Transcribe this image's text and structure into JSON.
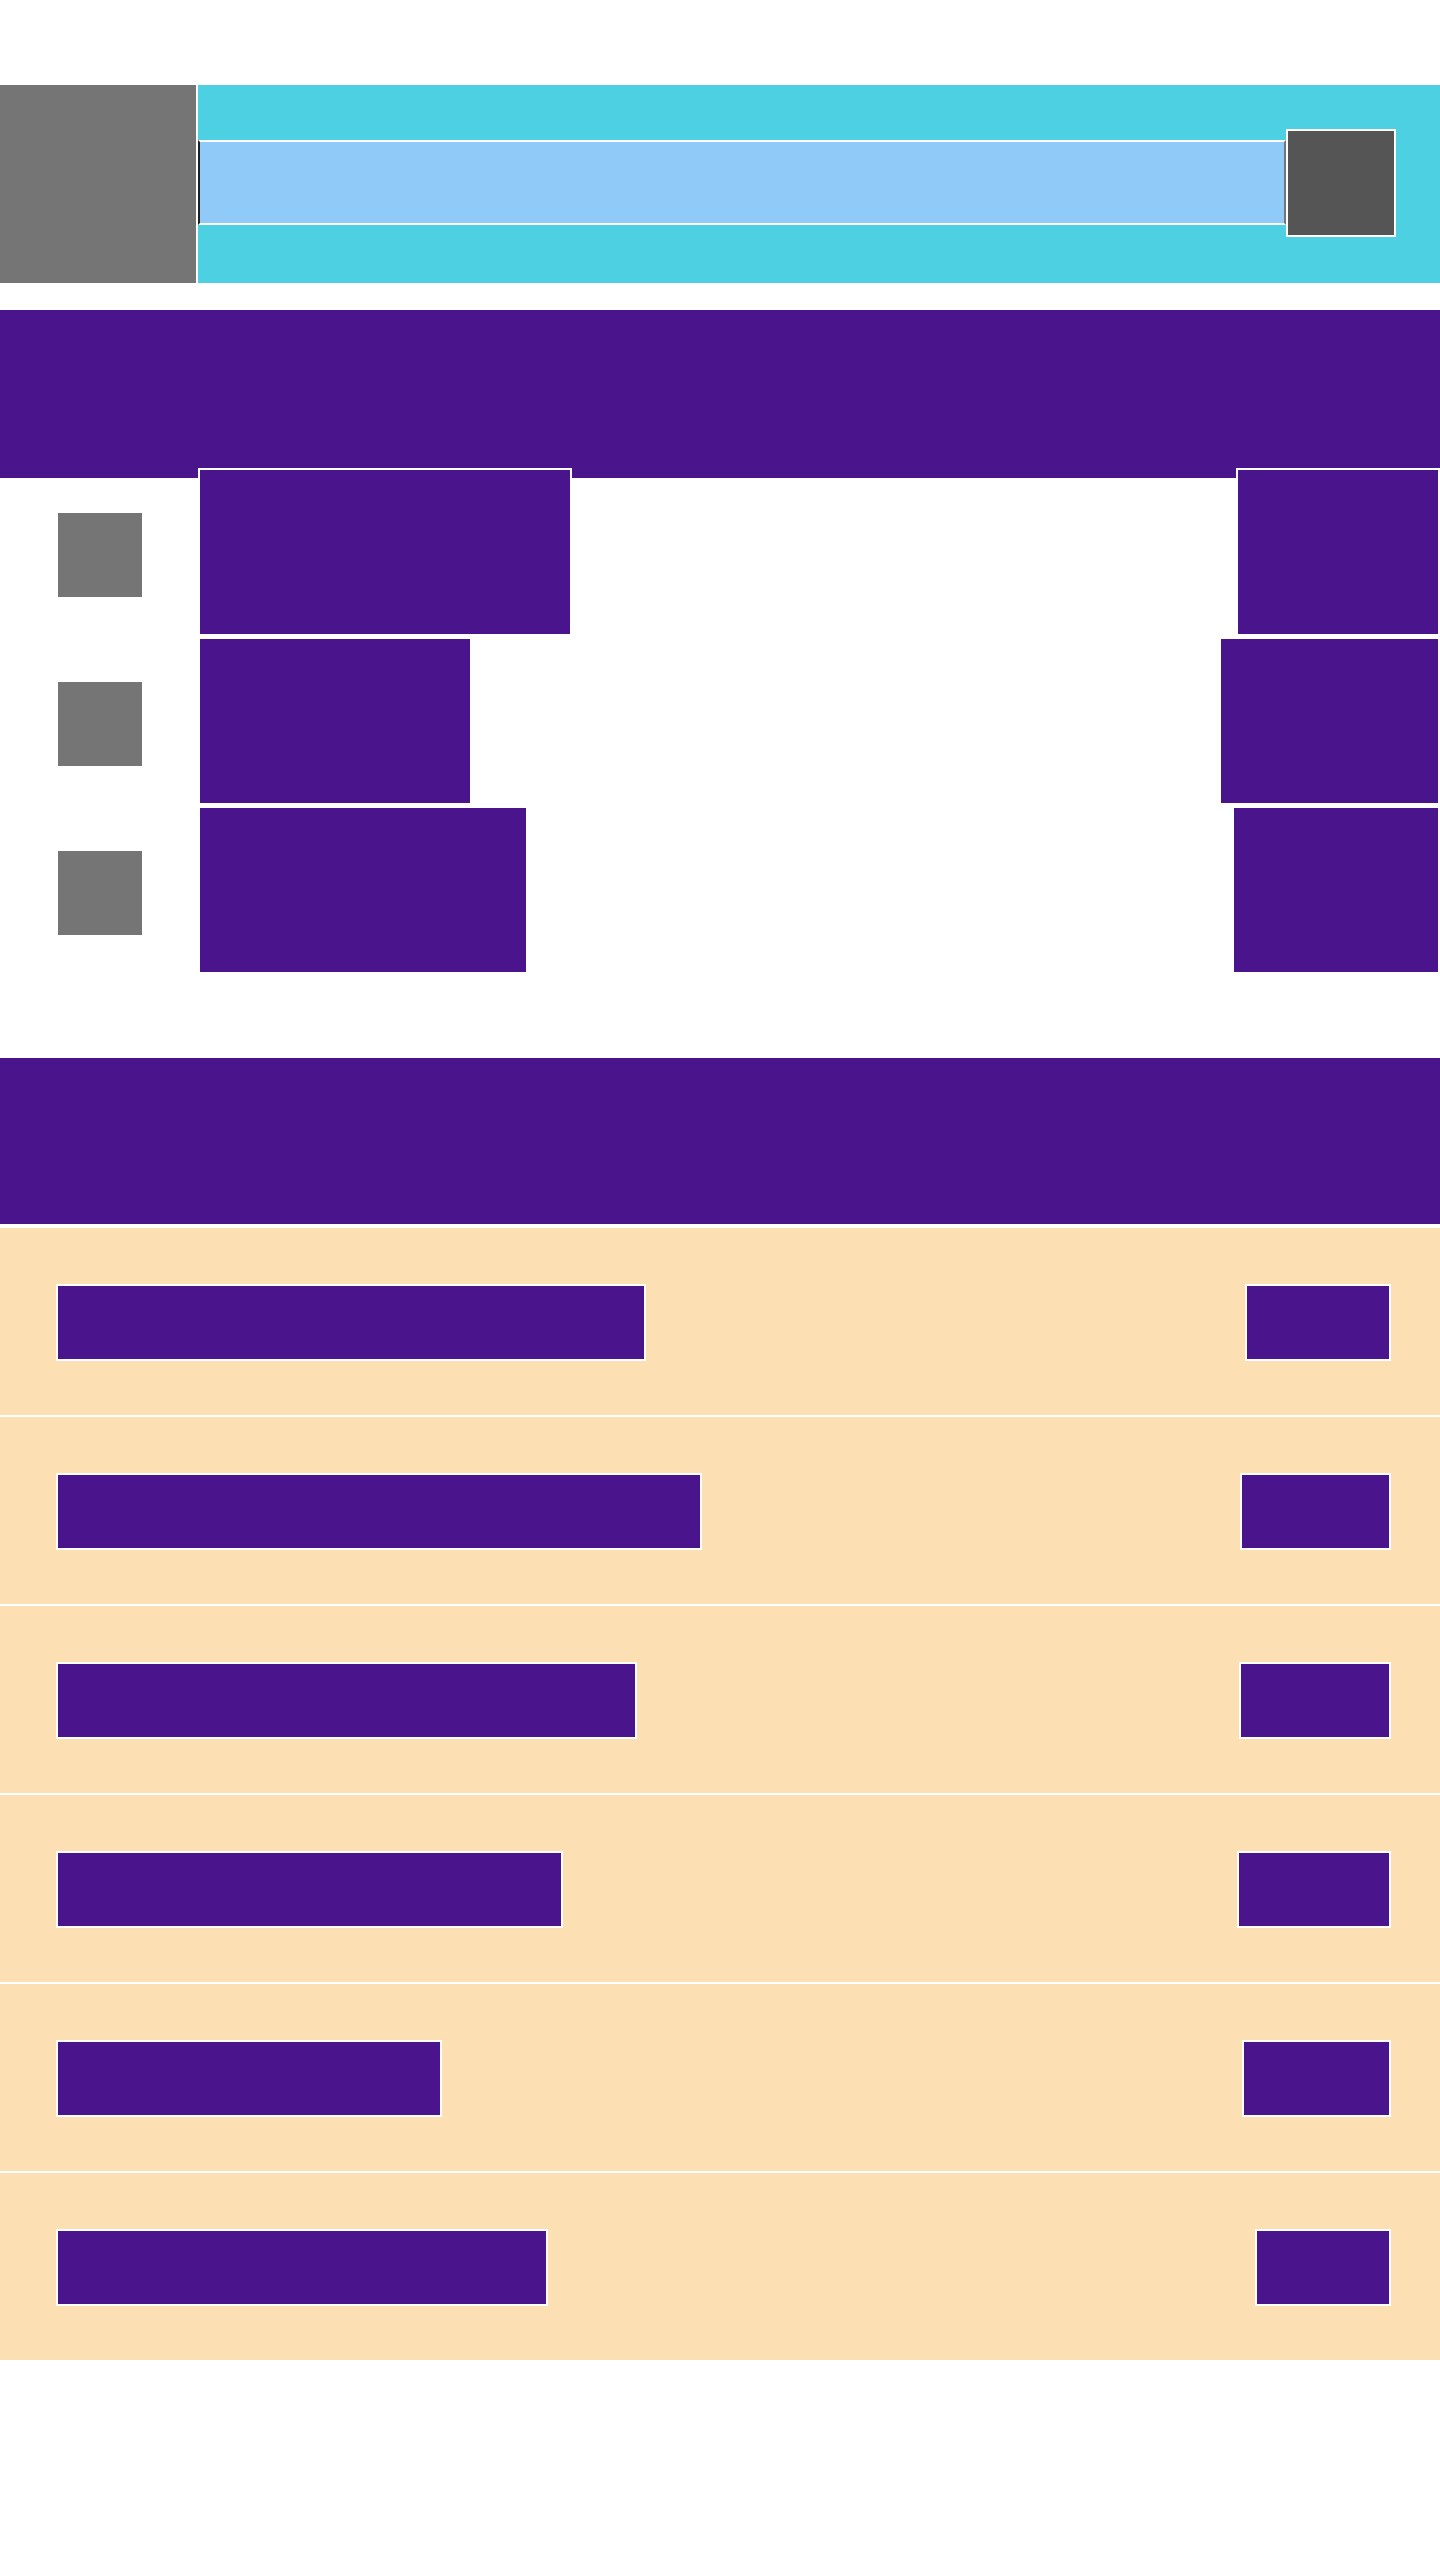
{
  "header": {
    "thumbnail_icon": "image-placeholder-icon",
    "search_placeholder": "",
    "action_icon": "image-placeholder-icon"
  },
  "section_1": {
    "title": "",
    "rows": [
      {
        "icon": "image-placeholder-icon",
        "title": "",
        "meta": ""
      },
      {
        "icon": "image-placeholder-icon",
        "title": "",
        "meta": ""
      },
      {
        "icon": "image-placeholder-icon",
        "title": "",
        "meta": ""
      }
    ]
  },
  "section_2": {
    "title": "",
    "rows": [
      {
        "title": "",
        "badge": ""
      },
      {
        "title": "",
        "badge": ""
      },
      {
        "title": "",
        "badge": ""
      },
      {
        "title": "",
        "badge": ""
      },
      {
        "title": "",
        "badge": ""
      },
      {
        "title": "",
        "badge": ""
      }
    ]
  },
  "colors": {
    "primary": "#4a148c",
    "search_bar": "#4dd0e1",
    "search_input": "#90caf9",
    "list_row_bg": "#fcdfb3",
    "placeholder_grey": "#757575"
  }
}
